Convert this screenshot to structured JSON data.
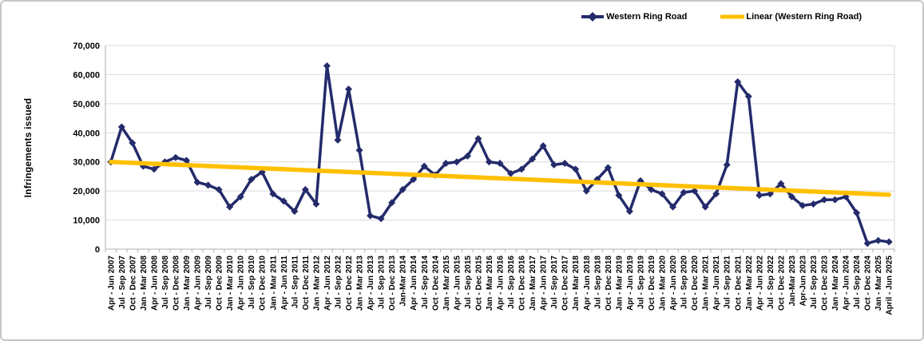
{
  "chart_data": {
    "type": "line",
    "title": "",
    "xlabel": "",
    "ylabel": "Infringements issued",
    "ylim": [
      0,
      70000
    ],
    "ytick_step": 10000,
    "ytick_labels": [
      "0",
      "10,000",
      "20,000",
      "30,000",
      "40,000",
      "50,000",
      "60,000",
      "70,000"
    ],
    "grid": true,
    "legend_position": "top-right",
    "categories": [
      "Apr - Jun 2007",
      "Jul - Sep 2007",
      "Oct - Dec 2007",
      "Jan - Mar 2008",
      "Apr - Jun 2008",
      "Jul - Sep 2008",
      "Oct - Dec 2008",
      "Jan - Mar 2009",
      "Apr - Jun 2009",
      "Jul - Sep 2009",
      "Oct - Dec 2009",
      "Jan - Mar 2010",
      "Apr - Jun 2010",
      "Jul - Sep 2010",
      "Oct - Dec 2010",
      "Jan - Mar 2011",
      "Apr - Jun 2011",
      "Jul - Sep 2011",
      "Oct - Dec 2011",
      "Jan - Mar 2012",
      "Apr - Jun 2012",
      "Jul - Sep 2012",
      "Oct - Dec 2012",
      "Jan - Mar 2013",
      "Apr - Jun 2013",
      "Jul - Sep 2013",
      "Oct - Dec 2013",
      "Jan-Mar 2014",
      "Apr - Jun 2014",
      "Jul - Sep 2014",
      "Oct - Dec 2014",
      "Jan - Mar 2015",
      "Apr - Jun 2015",
      "Jul - Sep 2015",
      "Oct - Dec 2015",
      "Jan - Mar 2016",
      "Apr - Jun 2016",
      "Jul - Sep 2016",
      "Oct - Dec 2016",
      "Jan - Mar 2017",
      "Apr - Jun 2017",
      "Jul - Sep 2017",
      "Oct - Dec 2017",
      "Jan - Mar 2018",
      "Apr - Jun 2018",
      "Jul - Sep 2018",
      "Oct - Dec 2018",
      "Jan - Mar 2019",
      "Apr - Jun 2019",
      "Jul - Sep 2019",
      "Oct - Dec 2019",
      "Jan - Mar 2020",
      "Apr - Jun 2020",
      "Jul - Sep 2020",
      "Oct - Dec 2020",
      "Jan - Mar 2021",
      "Apr - Jun 2021",
      "Jul - Sep 2021",
      "Oct - Dec 2021",
      "Jan - Mar 2022",
      "Apr - Jun 2022",
      "Jul - Sep 2022",
      "Oct - Dec 2022",
      "Jan-Mar 2023",
      "Apr-Jun 2023",
      "Jul - Sep 2023",
      "Oct - Dec 2023",
      "Jan - Mar 2024",
      "Apr - Jun 2024",
      "Jul - Sep 2024",
      "Oct - Dec 2024",
      "Jan - Mar 2025",
      "April - Jun 2025"
    ],
    "series": [
      {
        "name": "Western Ring Road",
        "color": "#242b6b",
        "marker": "diamond",
        "values": [
          30000,
          42000,
          36500,
          28500,
          27500,
          30000,
          31500,
          30500,
          23000,
          22000,
          20500,
          14500,
          18000,
          24000,
          26500,
          19000,
          16500,
          13000,
          20500,
          15500,
          63000,
          37500,
          55000,
          34000,
          11500,
          10500,
          16000,
          20500,
          24000,
          28500,
          25500,
          29500,
          30000,
          32000,
          38000,
          30000,
          29500,
          26000,
          27500,
          31000,
          35500,
          29000,
          29500,
          27500,
          20000,
          24000,
          28000,
          18500,
          13000,
          23500,
          20500,
          19000,
          14500,
          19500,
          20000,
          14500,
          19000,
          29000,
          57500,
          52500,
          18500,
          19000,
          22500,
          18000,
          15000,
          15500,
          17000,
          17000,
          18000,
          12500,
          2000,
          3000,
          2500
        ]
      },
      {
        "name": "Linear (Western Ring Road)",
        "color": "#ffc000",
        "type": "trendline",
        "start": 30000,
        "end": 18700
      }
    ]
  },
  "style": {
    "gridline_color": "#d9d9d9",
    "axis_color": "#b0b0b0",
    "text_color": "#000000"
  }
}
